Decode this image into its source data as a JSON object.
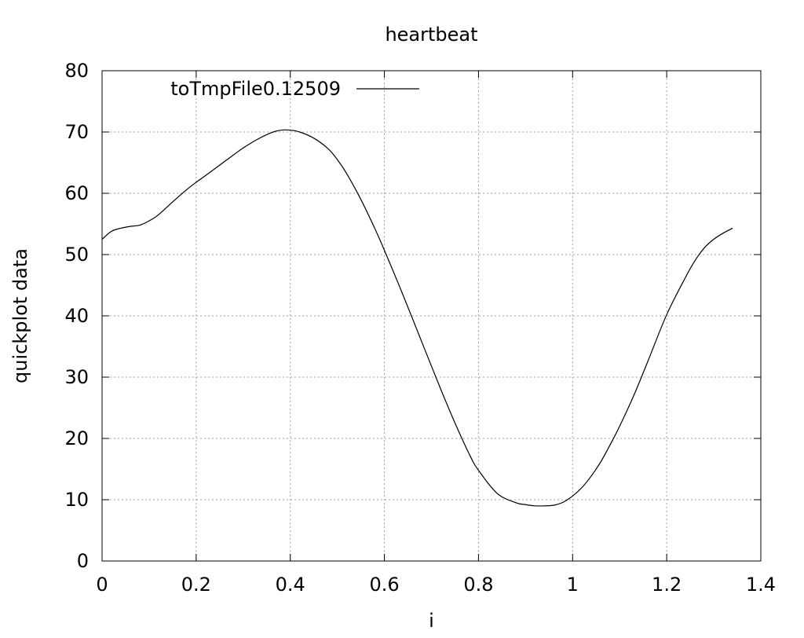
{
  "chart_data": {
    "type": "line",
    "title": "heartbeat",
    "xlabel": "i",
    "ylabel": "quickplot data",
    "xlim": [
      0,
      1.4
    ],
    "ylim": [
      0,
      80
    ],
    "xticks": [
      0,
      0.2,
      0.4,
      0.6,
      0.8,
      1,
      1.2,
      1.4
    ],
    "xtick_labels": [
      "0",
      "0.2",
      "0.4",
      "0.6",
      "0.8",
      "1",
      "1.2",
      "1.4"
    ],
    "yticks": [
      0,
      10,
      20,
      30,
      40,
      50,
      60,
      70,
      80
    ],
    "ytick_labels": [
      "0",
      "10",
      "20",
      "30",
      "40",
      "50",
      "60",
      "70",
      "80"
    ],
    "grid": true,
    "legend_position": "top-left",
    "series": [
      {
        "name": "toTmpFile0.12509",
        "color": "#000000",
        "x": [
          0,
          0.02,
          0.04,
          0.06,
          0.08,
          0.1,
          0.12,
          0.15,
          0.18,
          0.2,
          0.22,
          0.25,
          0.28,
          0.3,
          0.33,
          0.36,
          0.38,
          0.4,
          0.42,
          0.45,
          0.48,
          0.5,
          0.52,
          0.55,
          0.58,
          0.6,
          0.63,
          0.66,
          0.7,
          0.74,
          0.78,
          0.8,
          0.84,
          0.88,
          0.9,
          0.92,
          0.94,
          0.96,
          0.98,
          1.0,
          1.02,
          1.04,
          1.06,
          1.08,
          1.1,
          1.13,
          1.16,
          1.2,
          1.24,
          1.26,
          1.28,
          1.3,
          1.32,
          1.34
        ],
        "y": [
          52.5,
          53.8,
          54.3,
          54.6,
          54.8,
          55.5,
          56.5,
          58.6,
          60.6,
          61.8,
          62.9,
          64.6,
          66.3,
          67.4,
          68.8,
          69.9,
          70.3,
          70.3,
          70.0,
          69.0,
          67.3,
          65.5,
          63.2,
          59.0,
          54.2,
          50.7,
          45.2,
          39.5,
          31.8,
          24.3,
          17.5,
          14.8,
          11.0,
          9.5,
          9.2,
          9.0,
          9.0,
          9.1,
          9.6,
          10.6,
          12.0,
          13.9,
          16.2,
          19.0,
          22.0,
          27.0,
          32.6,
          40.2,
          46.3,
          49.0,
          51.1,
          52.5,
          53.5,
          54.3
        ]
      }
    ]
  }
}
